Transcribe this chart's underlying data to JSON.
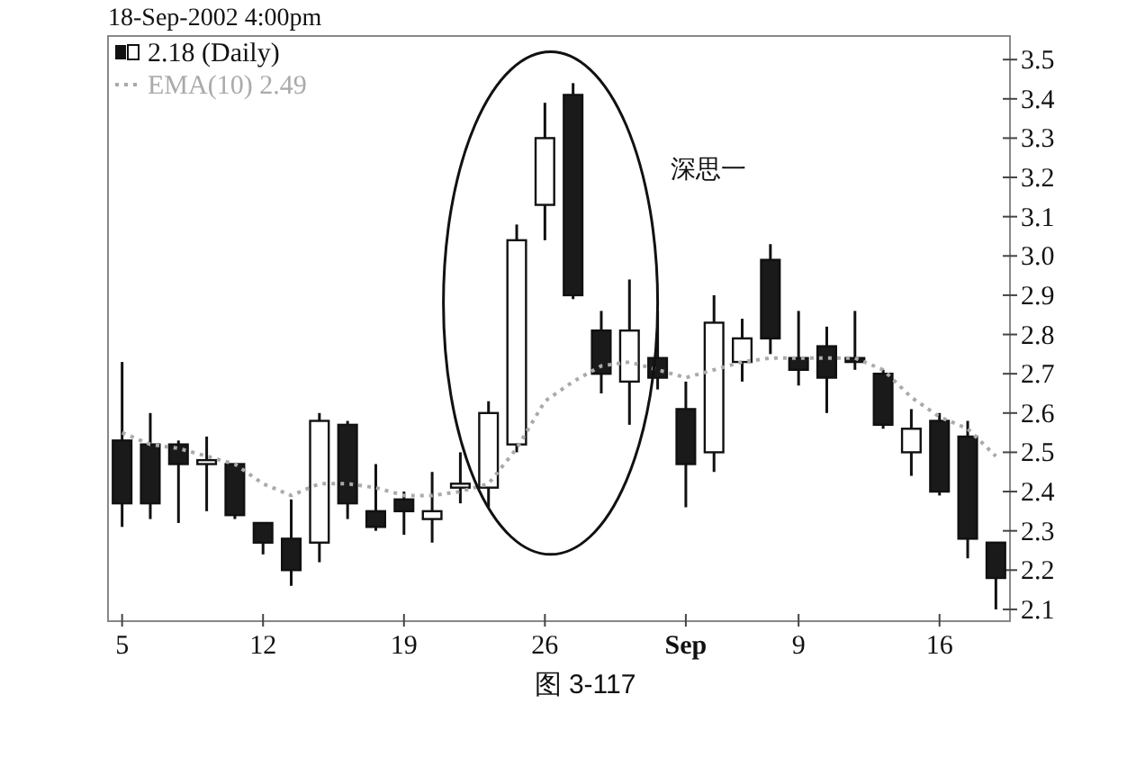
{
  "chart_data": {
    "type": "candlestick",
    "title": "2.18 (Daily)",
    "categories": [
      "5",
      null,
      null,
      null,
      null,
      "12",
      null,
      null,
      null,
      null,
      "19",
      null,
      null,
      null,
      null,
      "26",
      null,
      null,
      null,
      null,
      "Sep",
      null,
      null,
      null,
      "9",
      null,
      null,
      null,
      null,
      "16",
      null,
      null
    ],
    "ohlc": [
      [
        2.53,
        2.73,
        2.31,
        2.37
      ],
      [
        2.52,
        2.6,
        2.33,
        2.37
      ],
      [
        2.52,
        2.53,
        2.32,
        2.47
      ],
      [
        2.47,
        2.54,
        2.35,
        2.48
      ],
      [
        2.47,
        2.47,
        2.33,
        2.34
      ],
      [
        2.32,
        2.32,
        2.24,
        2.27
      ],
      [
        2.28,
        2.38,
        2.16,
        2.2
      ],
      [
        2.27,
        2.6,
        2.22,
        2.58
      ],
      [
        2.57,
        2.58,
        2.33,
        2.37
      ],
      [
        2.35,
        2.47,
        2.3,
        2.31
      ],
      [
        2.38,
        2.4,
        2.29,
        2.35
      ],
      [
        2.33,
        2.45,
        2.27,
        2.35
      ],
      [
        2.41,
        2.5,
        2.37,
        2.42
      ],
      [
        2.41,
        2.63,
        2.36,
        2.6
      ],
      [
        2.52,
        3.08,
        2.5,
        3.04
      ],
      [
        3.13,
        3.39,
        3.04,
        3.3
      ],
      [
        3.41,
        3.44,
        2.89,
        2.9
      ],
      [
        2.81,
        2.86,
        2.65,
        2.7
      ],
      [
        2.68,
        2.94,
        2.57,
        2.81
      ],
      [
        2.74,
        2.86,
        2.66,
        2.69
      ],
      [
        2.61,
        2.68,
        2.36,
        2.47
      ],
      [
        2.5,
        2.9,
        2.45,
        2.83
      ],
      [
        2.73,
        2.84,
        2.68,
        2.79
      ],
      [
        2.99,
        3.03,
        2.75,
        2.79
      ],
      [
        2.74,
        2.86,
        2.67,
        2.71
      ],
      [
        2.77,
        2.82,
        2.6,
        2.69
      ],
      [
        2.74,
        2.86,
        2.71,
        2.73
      ],
      [
        2.7,
        2.71,
        2.56,
        2.57
      ],
      [
        2.5,
        2.61,
        2.44,
        2.56
      ],
      [
        2.58,
        2.6,
        2.39,
        2.4
      ],
      [
        2.54,
        2.58,
        2.23,
        2.28
      ],
      [
        2.27,
        2.27,
        2.1,
        2.18
      ]
    ],
    "series": [
      {
        "name": "EMA(10) 2.49",
        "type": "line",
        "color": "#aaaaaa",
        "line_style": "dotted",
        "values": [
          2.55,
          2.52,
          2.51,
          2.49,
          2.47,
          2.42,
          2.39,
          2.42,
          2.42,
          2.41,
          2.39,
          2.39,
          2.4,
          2.42,
          2.51,
          2.63,
          2.68,
          2.72,
          2.73,
          2.71,
          2.69,
          2.71,
          2.73,
          2.74,
          2.74,
          2.74,
          2.74,
          2.71,
          2.64,
          2.59,
          2.56,
          2.49
        ]
      }
    ],
    "ylim": [
      2.07,
      3.56
    ],
    "yticks": [
      2.1,
      2.2,
      2.3,
      2.4,
      2.5,
      2.6,
      2.7,
      2.8,
      2.9,
      {
        "value": 3.0,
        "label": "3.0"
      },
      3.1,
      3.2,
      3.3,
      3.4,
      3.5
    ],
    "legend": "top left",
    "grid": false,
    "annotations": [
      "18-Sep-2002 4:00pm",
      "深思一",
      "图 3-117"
    ]
  }
}
